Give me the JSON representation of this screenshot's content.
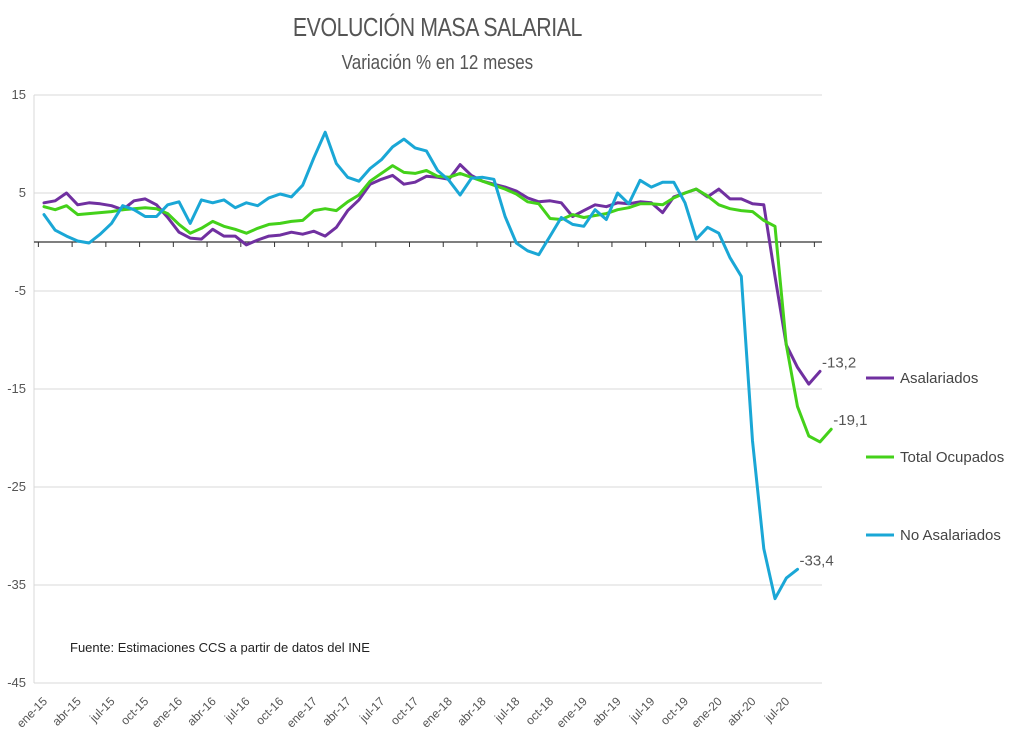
{
  "colors": {
    "asalariados": "#7030a0",
    "total_ocupados": "#44d11a",
    "no_asalariados": "#1aa7d6",
    "grid": "#d9d9d9",
    "axis": "#7f7f7f"
  },
  "chart_data": {
    "type": "line",
    "title": "EVOLUCIÓN MASA SALARIAL",
    "subtitle": "Variación % en 12 meses",
    "source": "Fuente: Estimaciones CCS a partir de datos del INE",
    "ylim": [
      -45,
      15
    ],
    "yticks": [
      15,
      5,
      -5,
      -15,
      -25,
      -35,
      -45
    ],
    "yticklabels": [
      "15",
      "5",
      "-5",
      "-15",
      "-25",
      "-35",
      "-45"
    ],
    "grid": true,
    "legend_position": "right",
    "xtick_labels": [
      "ene-15",
      "abr-15",
      "jul-15",
      "oct-15",
      "ene-16",
      "abr-16",
      "jul-16",
      "oct-16",
      "ene-17",
      "abr-17",
      "jul-17",
      "oct-17",
      "ene-18",
      "abr-18",
      "jul-18",
      "oct-18",
      "ene-19",
      "abr-19",
      "jul-19",
      "oct-19",
      "ene-20",
      "abr-20",
      "jul-20"
    ],
    "series": [
      {
        "key": "asalariados",
        "name": "Asalariados",
        "end_label": "-13,2",
        "values": [
          4.0,
          4.2,
          5.0,
          3.8,
          4.0,
          3.9,
          3.7,
          3.3,
          4.2,
          4.4,
          3.8,
          2.5,
          1.0,
          0.4,
          0.3,
          1.3,
          0.6,
          0.6,
          -0.3,
          0.2,
          0.6,
          0.7,
          1.0,
          0.8,
          1.1,
          0.6,
          1.5,
          3.2,
          4.3,
          5.9,
          6.4,
          6.8,
          5.9,
          6.1,
          6.7,
          6.6,
          6.4,
          7.9,
          6.8,
          6.2,
          5.9,
          5.6,
          5.2,
          4.5,
          4.1,
          4.2,
          4.0,
          2.6,
          3.2,
          3.8,
          3.6,
          4.0,
          3.9,
          4.1,
          4.0,
          3.0,
          4.6,
          5.0,
          5.4,
          4.6,
          5.4,
          4.4,
          4.4,
          3.9,
          3.8,
          -3.5,
          -10.5,
          -12.8,
          -14.5,
          -13.2
        ]
      },
      {
        "key": "total_ocupados",
        "name": "Total Ocupados",
        "end_label": "-19,1",
        "values": [
          3.6,
          3.3,
          3.7,
          2.8,
          2.9,
          3.0,
          3.1,
          3.3,
          3.4,
          3.5,
          3.4,
          2.9,
          1.8,
          0.9,
          1.4,
          2.1,
          1.6,
          1.3,
          0.9,
          1.4,
          1.8,
          1.9,
          2.1,
          2.2,
          3.2,
          3.4,
          3.2,
          4.1,
          4.8,
          6.2,
          7.0,
          7.8,
          7.1,
          7.0,
          7.3,
          6.7,
          6.6,
          7.0,
          6.6,
          6.2,
          5.8,
          5.4,
          4.9,
          4.1,
          3.9,
          2.4,
          2.3,
          2.8,
          2.5,
          2.7,
          2.9,
          3.3,
          3.5,
          3.9,
          3.9,
          3.8,
          4.5,
          5.0,
          5.4,
          4.7,
          3.8,
          3.4,
          3.2,
          3.1,
          2.2,
          1.6,
          -10.5,
          -16.8,
          -19.8,
          -20.4,
          -19.1
        ]
      },
      {
        "key": "no_asalariados",
        "name": "No Asalariados",
        "end_label": "-33,4",
        "values": [
          2.8,
          1.2,
          0.6,
          0.1,
          -0.1,
          0.8,
          1.9,
          3.7,
          3.3,
          2.6,
          2.6,
          3.8,
          4.1,
          1.9,
          4.3,
          4.0,
          4.3,
          3.5,
          4.0,
          3.7,
          4.5,
          4.9,
          4.6,
          5.8,
          8.6,
          11.2,
          8.0,
          6.6,
          6.2,
          7.5,
          8.4,
          9.7,
          10.5,
          9.6,
          9.3,
          7.3,
          6.3,
          4.8,
          6.5,
          6.6,
          6.4,
          2.6,
          -0.1,
          -0.9,
          -1.3,
          0.6,
          2.5,
          1.8,
          1.6,
          3.3,
          2.3,
          5.0,
          3.9,
          6.3,
          5.6,
          6.1,
          6.1,
          4.0,
          0.3,
          1.5,
          0.9,
          -1.6,
          -3.5,
          -20.3,
          -31.3,
          -36.4,
          -34.3,
          -33.4
        ]
      }
    ]
  }
}
